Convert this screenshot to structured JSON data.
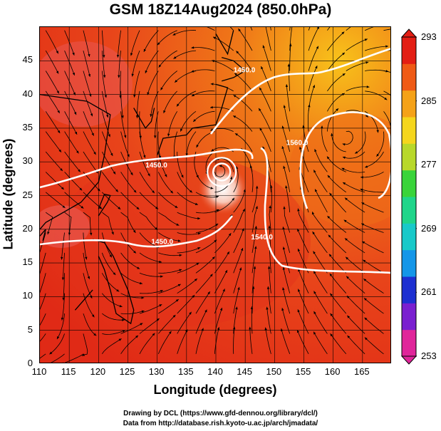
{
  "title": "GSM 18Z14Aug2024 (850.0hPa)",
  "xlabel": "Longitude (degrees)",
  "ylabel": "Latitude  (degrees)",
  "x_ticks": [
    "110",
    "115",
    "120",
    "125",
    "130",
    "135",
    "140",
    "145",
    "150",
    "155",
    "160",
    "165"
  ],
  "y_ticks": [
    "0",
    "5",
    "10",
    "15",
    "20",
    "25",
    "30",
    "35",
    "40",
    "45"
  ],
  "colorbar": {
    "ticks": [
      "293",
      "285",
      "277",
      "269",
      "261",
      "253"
    ],
    "range": [
      253,
      293
    ],
    "colors": [
      "#e0259a",
      "#7a1fd0",
      "#1d2fd1",
      "#1496e8",
      "#18c9c9",
      "#1fd58a",
      "#39d43a",
      "#b8d82a",
      "#f5d61c",
      "#f5a218",
      "#ef5a15",
      "#e31e14"
    ]
  },
  "contours": [
    {
      "label": "1450.0",
      "segment": "upper-left"
    },
    {
      "label": "1450.0",
      "segment": "northwest"
    },
    {
      "label": "1450.0",
      "segment": "lower-left"
    },
    {
      "label": "1560.0",
      "segment": "east-anticyclone"
    },
    {
      "label": "1540.0",
      "segment": "east-south"
    }
  ],
  "credits": [
    "Drawing by DCL (https://www.gfd-dennou.org/library/dcl/)",
    "Data from http://database.rish.kyoto-u.ac.jp/arch/jmadata/"
  ],
  "chart_data": {
    "type": "heatmap",
    "title": "GSM 18Z14Aug2024 (850.0hPa)",
    "xlabel": "Longitude (degrees)",
    "ylabel": "Latitude  (degrees)",
    "xlim": [
      110,
      170
    ],
    "ylim": [
      0,
      50
    ],
    "x_ticks": [
      110,
      115,
      120,
      125,
      130,
      135,
      140,
      145,
      150,
      155,
      160,
      165
    ],
    "y_ticks": [
      0,
      5,
      10,
      15,
      20,
      25,
      30,
      35,
      40,
      45
    ],
    "color_range": [
      253,
      293
    ],
    "colorbar_ticks": [
      293,
      285,
      277,
      269,
      261,
      253
    ],
    "features": {
      "cyclone_center": {
        "lon": 141,
        "lat": 28.5
      },
      "anticyclone_center": {
        "lon": 161,
        "lat": 33.5
      }
    },
    "grid": true
  }
}
